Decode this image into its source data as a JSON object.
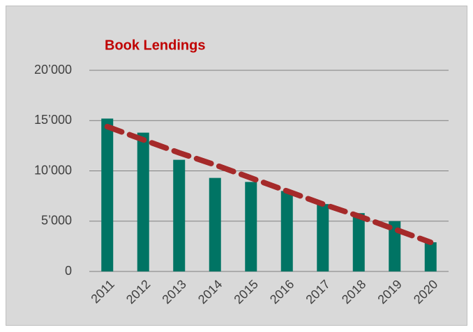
{
  "chart_data": {
    "type": "bar",
    "title": "Book Lendings",
    "categories": [
      "2011",
      "2012",
      "2013",
      "2014",
      "2015",
      "2016",
      "2017",
      "2018",
      "2019",
      "2020"
    ],
    "values": [
      15200,
      13800,
      11100,
      9300,
      8900,
      8000,
      6700,
      5800,
      5000,
      2900
    ],
    "color": "#007464",
    "trend": {
      "color": "#a52a2a",
      "values": [
        14400,
        13100,
        11800,
        10600,
        9300,
        8000,
        6700,
        5500,
        4200,
        2900
      ]
    },
    "ylim": [
      0,
      20000
    ],
    "yticks": [
      0,
      {
        "value": 5000,
        "label": "5’000"
      },
      {
        "value": 10000,
        "label": "10’000"
      },
      {
        "value": 15000,
        "label": "15’000"
      },
      {
        "value": 20000,
        "label": "20’000"
      }
    ],
    "grid": true
  }
}
